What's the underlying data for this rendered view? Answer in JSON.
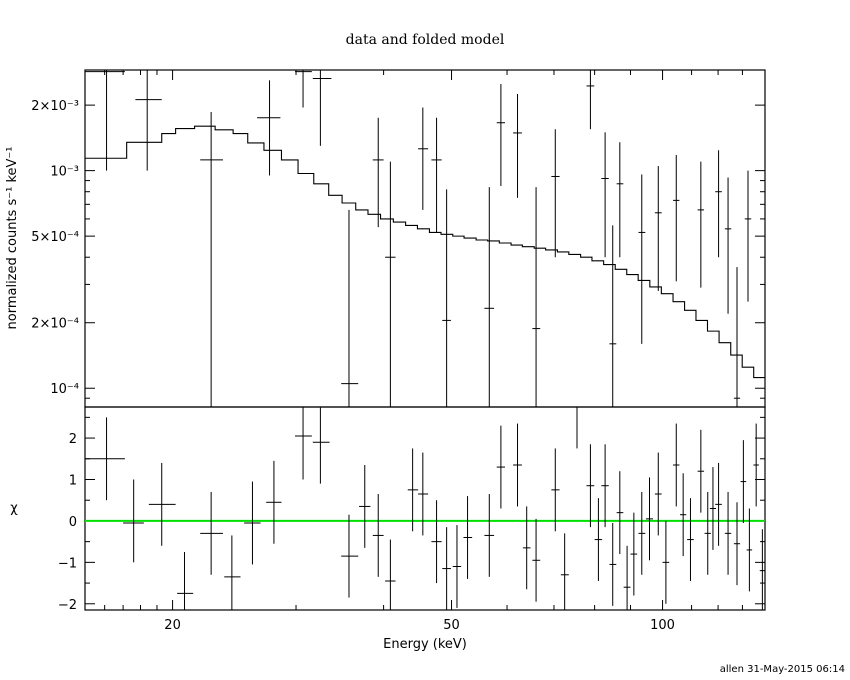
{
  "chart_data": [
    {
      "type": "scatter",
      "title": "data and folded model",
      "ylabel": "normalized counts s⁻¹ keV⁻¹",
      "yscale": "log",
      "xscale": "log",
      "xlim": [
        15,
        140
      ],
      "ylim": [
        8.2e-05,
        0.0029
      ],
      "ytick_labels": [
        "2×10⁻³",
        "10⁻³",
        "5×10⁻⁴",
        "2×10⁻⁴",
        "10⁻⁴"
      ],
      "ytick_values": [
        0.002,
        0.001,
        0.0005,
        0.0002,
        0.0001
      ],
      "data": [
        {
          "x": 16.1,
          "xlo": 15.0,
          "xhi": 17.1,
          "y": 0.00285,
          "ylo": 0.001,
          "yhi": 0.0045
        },
        {
          "x": 18.4,
          "xlo": 17.7,
          "xhi": 19.3,
          "y": 0.00212,
          "ylo": 0.001,
          "yhi": 0.0031
        },
        {
          "x": 22.7,
          "xlo": 21.9,
          "xhi": 23.6,
          "y": 0.00112,
          "ylo": 8e-05,
          "yhi": 0.00186
        },
        {
          "x": 27.5,
          "xlo": 26.4,
          "xhi": 28.5,
          "y": 0.00175,
          "ylo": 0.00095,
          "yhi": 0.0026
        },
        {
          "x": 30.7,
          "xlo": 29.9,
          "xhi": 31.6,
          "y": 0.00285,
          "ylo": 0.00195,
          "yhi": 0.0037
        },
        {
          "x": 32.5,
          "xlo": 31.7,
          "xhi": 33.7,
          "y": 0.00265,
          "ylo": 0.0013,
          "yhi": 0.004
        },
        {
          "x": 35.7,
          "xlo": 34.8,
          "xhi": 36.8,
          "y": 0.000105,
          "ylo": 8e-05,
          "yhi": 0.00066
        },
        {
          "x": 39.3,
          "xlo": 38.6,
          "xhi": 40.0,
          "y": 0.00112,
          "ylo": 0.00055,
          "yhi": 0.00175
        },
        {
          "x": 40.9,
          "xlo": 40.2,
          "xhi": 41.6,
          "y": 0.0004,
          "ylo": 8e-05,
          "yhi": 0.0011
        },
        {
          "x": 45.5,
          "xlo": 44.8,
          "xhi": 46.3,
          "y": 0.00126,
          "ylo": 0.00066,
          "yhi": 0.00195
        },
        {
          "x": 47.6,
          "xlo": 46.8,
          "xhi": 48.4,
          "y": 0.00112,
          "ylo": 0.00052,
          "yhi": 0.00175
        },
        {
          "x": 49.2,
          "xlo": 48.5,
          "xhi": 49.9,
          "y": 0.000205,
          "ylo": 8e-05,
          "yhi": 0.00082
        },
        {
          "x": 56.6,
          "xlo": 55.7,
          "xhi": 57.5,
          "y": 0.000233,
          "ylo": 8e-05,
          "yhi": 0.00084
        },
        {
          "x": 58.8,
          "xlo": 58.0,
          "xhi": 59.6,
          "y": 0.00166,
          "ylo": 0.00085,
          "yhi": 0.0025
        },
        {
          "x": 62.1,
          "xlo": 61.2,
          "xhi": 63.0,
          "y": 0.00149,
          "ylo": 0.00075,
          "yhi": 0.00225
        },
        {
          "x": 66.0,
          "xlo": 65.2,
          "xhi": 66.9,
          "y": 0.000188,
          "ylo": 8e-05,
          "yhi": 0.00084
        },
        {
          "x": 70.3,
          "xlo": 69.4,
          "xhi": 71.3,
          "y": 0.00094,
          "ylo": 0.0004,
          "yhi": 0.00155
        },
        {
          "x": 78.9,
          "xlo": 77.9,
          "xhi": 79.9,
          "y": 0.00245,
          "ylo": 0.00155,
          "yhi": 0.0033
        },
        {
          "x": 82.8,
          "xlo": 81.8,
          "xhi": 83.8,
          "y": 0.00092,
          "ylo": 0.0004,
          "yhi": 0.0015
        },
        {
          "x": 84.9,
          "xlo": 84.0,
          "xhi": 85.9,
          "y": 0.00016,
          "ylo": 8e-05,
          "yhi": 0.00056
        },
        {
          "x": 86.9,
          "xlo": 86.0,
          "xhi": 87.9,
          "y": 0.00087,
          "ylo": 0.0004,
          "yhi": 0.00135
        },
        {
          "x": 93.4,
          "xlo": 92.4,
          "xhi": 94.5,
          "y": 0.00052,
          "ylo": 0.00016,
          "yhi": 0.00096
        },
        {
          "x": 98.6,
          "xlo": 97.5,
          "xhi": 99.7,
          "y": 0.00064,
          "ylo": 0.00028,
          "yhi": 0.00105
        },
        {
          "x": 104.6,
          "xlo": 103.5,
          "xhi": 105.7,
          "y": 0.00073,
          "ylo": 0.00031,
          "yhi": 0.00118
        },
        {
          "x": 113.4,
          "xlo": 112.2,
          "xhi": 114.6,
          "y": 0.00066,
          "ylo": 0.00029,
          "yhi": 0.0011
        },
        {
          "x": 120.2,
          "xlo": 118.9,
          "xhi": 121.5,
          "y": 0.0008,
          "ylo": 0.0004,
          "yhi": 0.00124
        },
        {
          "x": 124.0,
          "xlo": 122.7,
          "xhi": 125.3,
          "y": 0.00054,
          "ylo": 0.00022,
          "yhi": 0.00093
        },
        {
          "x": 127.7,
          "xlo": 126.4,
          "xhi": 129.0,
          "y": 9e-05,
          "ylo": 8e-05,
          "yhi": 0.00036
        },
        {
          "x": 132.4,
          "xlo": 131.0,
          "xhi": 133.8,
          "y": 0.0006,
          "ylo": 0.00025,
          "yhi": 0.001
        }
      ],
      "model_steps": [
        [
          15.0,
          0.00114
        ],
        [
          17.2,
          0.00135
        ],
        [
          19.3,
          0.00148
        ],
        [
          20.2,
          0.00156
        ],
        [
          21.5,
          0.0016
        ],
        [
          23.0,
          0.00154
        ],
        [
          24.4,
          0.00148
        ],
        [
          25.6,
          0.00134
        ],
        [
          27.0,
          0.00124
        ],
        [
          28.6,
          0.00112
        ],
        [
          30.2,
          0.00097
        ],
        [
          31.8,
          0.00087
        ],
        [
          33.4,
          0.00077
        ],
        [
          34.9,
          0.00071
        ],
        [
          36.5,
          0.00066
        ],
        [
          38.0,
          0.00063
        ],
        [
          39.6,
          0.0006
        ],
        [
          41.3,
          0.00058
        ],
        [
          43.0,
          0.00056
        ],
        [
          44.7,
          0.00054
        ],
        [
          46.5,
          0.00052
        ],
        [
          48.3,
          0.00051
        ],
        [
          50.2,
          0.0005
        ],
        [
          52.1,
          0.00049
        ],
        [
          54.2,
          0.00048
        ],
        [
          56.3,
          0.000475
        ],
        [
          58.5,
          0.000465
        ],
        [
          60.8,
          0.000455
        ],
        [
          63.1,
          0.000447
        ],
        [
          65.6,
          0.00044
        ],
        [
          68.1,
          0.000432
        ],
        [
          70.8,
          0.000423
        ],
        [
          73.5,
          0.000412
        ],
        [
          76.4,
          0.0004
        ],
        [
          79.3,
          0.000385
        ],
        [
          82.4,
          0.00037
        ],
        [
          85.6,
          0.000352
        ],
        [
          88.9,
          0.000333
        ],
        [
          92.3,
          0.000313
        ],
        [
          95.9,
          0.000292
        ],
        [
          99.6,
          0.000272
        ],
        [
          103.5,
          0.00025
        ],
        [
          107.5,
          0.000228
        ],
        [
          111.6,
          0.000205
        ],
        [
          115.9,
          0.000183
        ],
        [
          120.4,
          0.000162
        ],
        [
          125.1,
          0.000142
        ],
        [
          129.9,
          0.000125
        ],
        [
          134.9,
          0.000112
        ],
        [
          140.0,
          0.000112
        ]
      ]
    },
    {
      "type": "scatter",
      "xlabel": "Energy (keV)",
      "ylabel": "χ",
      "xscale": "log",
      "xlim": [
        15,
        140
      ],
      "ylim": [
        -2.15,
        2.75
      ],
      "xtick_labels": [
        "20",
        "50",
        "100"
      ],
      "xtick_values": [
        20,
        50,
        100
      ],
      "ytick_labels": [
        "2",
        "1",
        "0",
        "−1",
        "−2"
      ],
      "ytick_values": [
        2,
        1,
        0,
        -1,
        -2
      ],
      "zero_line_color": "#00e000",
      "data": [
        {
          "x": 16.1,
          "xlo": 15.0,
          "xhi": 17.1,
          "y": 1.5,
          "ylo": 0.5,
          "yhi": 2.5
        },
        {
          "x": 17.6,
          "xlo": 17.0,
          "xhi": 18.2,
          "y": -0.05,
          "ylo": -1.0,
          "yhi": 1.0
        },
        {
          "x": 19.3,
          "xlo": 18.5,
          "xhi": 20.2,
          "y": 0.4,
          "ylo": -0.6,
          "yhi": 1.4
        },
        {
          "x": 20.8,
          "xlo": 20.3,
          "xhi": 21.4,
          "y": -1.75,
          "ylo": -2.15,
          "yhi": -0.75
        },
        {
          "x": 22.7,
          "xlo": 21.9,
          "xhi": 23.6,
          "y": -0.3,
          "ylo": -1.3,
          "yhi": 0.7
        },
        {
          "x": 24.3,
          "xlo": 23.7,
          "xhi": 25.0,
          "y": -1.35,
          "ylo": -2.15,
          "yhi": -0.35
        },
        {
          "x": 26.0,
          "xlo": 25.3,
          "xhi": 26.7,
          "y": -0.05,
          "ylo": -1.05,
          "yhi": 0.95
        },
        {
          "x": 27.9,
          "xlo": 27.2,
          "xhi": 28.6,
          "y": 0.45,
          "ylo": -0.55,
          "yhi": 1.45
        },
        {
          "x": 30.7,
          "xlo": 29.9,
          "xhi": 31.6,
          "y": 2.05,
          "ylo": 1.0,
          "yhi": 2.75
        },
        {
          "x": 32.5,
          "xlo": 31.7,
          "xhi": 33.5,
          "y": 1.9,
          "ylo": 0.9,
          "yhi": 2.75
        },
        {
          "x": 35.7,
          "xlo": 34.8,
          "xhi": 36.8,
          "y": -0.85,
          "ylo": -1.85,
          "yhi": 0.15
        },
        {
          "x": 37.6,
          "xlo": 36.9,
          "xhi": 38.3,
          "y": 0.35,
          "ylo": -0.65,
          "yhi": 1.35
        },
        {
          "x": 39.3,
          "xlo": 38.6,
          "xhi": 40.0,
          "y": -0.35,
          "ylo": -1.35,
          "yhi": 0.65
        },
        {
          "x": 40.9,
          "xlo": 40.2,
          "xhi": 41.6,
          "y": -1.45,
          "ylo": -2.15,
          "yhi": -0.45
        },
        {
          "x": 44.0,
          "xlo": 43.3,
          "xhi": 44.8,
          "y": 0.75,
          "ylo": -0.25,
          "yhi": 1.75
        },
        {
          "x": 45.5,
          "xlo": 44.8,
          "xhi": 46.3,
          "y": 0.65,
          "ylo": -0.35,
          "yhi": 1.65
        },
        {
          "x": 47.6,
          "xlo": 46.8,
          "xhi": 48.4,
          "y": -0.5,
          "ylo": -1.5,
          "yhi": 0.5
        },
        {
          "x": 49.2,
          "xlo": 48.5,
          "xhi": 49.9,
          "y": -1.15,
          "ylo": -2.15,
          "yhi": -0.15
        },
        {
          "x": 50.9,
          "xlo": 50.2,
          "xhi": 51.6,
          "y": -1.1,
          "ylo": -2.1,
          "yhi": -0.1
        },
        {
          "x": 52.7,
          "xlo": 52.0,
          "xhi": 53.5,
          "y": -0.4,
          "ylo": -1.4,
          "yhi": 0.6
        },
        {
          "x": 56.6,
          "xlo": 55.7,
          "xhi": 57.5,
          "y": -0.35,
          "ylo": -1.35,
          "yhi": 0.65
        },
        {
          "x": 58.8,
          "xlo": 58.0,
          "xhi": 59.6,
          "y": 1.3,
          "ylo": 0.3,
          "yhi": 2.3
        },
        {
          "x": 62.1,
          "xlo": 61.2,
          "xhi": 63.0,
          "y": 1.35,
          "ylo": 0.35,
          "yhi": 2.35
        },
        {
          "x": 64.0,
          "xlo": 63.2,
          "xhi": 64.8,
          "y": -0.65,
          "ylo": -1.65,
          "yhi": 0.35
        },
        {
          "x": 66.0,
          "xlo": 65.2,
          "xhi": 66.9,
          "y": -0.95,
          "ylo": -1.95,
          "yhi": 0.05
        },
        {
          "x": 70.3,
          "xlo": 69.4,
          "xhi": 71.3,
          "y": 0.75,
          "ylo": -0.25,
          "yhi": 1.75
        },
        {
          "x": 72.5,
          "xlo": 71.6,
          "xhi": 73.5,
          "y": -1.3,
          "ylo": -2.15,
          "yhi": -0.3
        },
        {
          "x": 75.5,
          "xlo": 74.7,
          "xhi": 76.4,
          "y": 2.75,
          "ylo": 1.75,
          "yhi": 2.75
        },
        {
          "x": 78.9,
          "xlo": 77.9,
          "xhi": 79.9,
          "y": 0.85,
          "ylo": -0.15,
          "yhi": 1.85
        },
        {
          "x": 81.0,
          "xlo": 80.0,
          "xhi": 82.0,
          "y": -0.45,
          "ylo": -1.45,
          "yhi": 0.55
        },
        {
          "x": 82.8,
          "xlo": 81.8,
          "xhi": 83.8,
          "y": 0.85,
          "ylo": -0.15,
          "yhi": 1.85
        },
        {
          "x": 84.9,
          "xlo": 84.0,
          "xhi": 85.9,
          "y": -1.05,
          "ylo": -2.05,
          "yhi": -0.05
        },
        {
          "x": 86.9,
          "xlo": 86.0,
          "xhi": 87.9,
          "y": 0.2,
          "ylo": -0.8,
          "yhi": 1.2
        },
        {
          "x": 89.0,
          "xlo": 88.0,
          "xhi": 90.0,
          "y": -1.6,
          "ylo": -2.15,
          "yhi": -0.6
        },
        {
          "x": 91.0,
          "xlo": 90.0,
          "xhi": 92.0,
          "y": -0.8,
          "ylo": -1.8,
          "yhi": 0.2
        },
        {
          "x": 93.4,
          "xlo": 92.4,
          "xhi": 94.5,
          "y": -0.3,
          "ylo": -1.3,
          "yhi": 0.7
        },
        {
          "x": 95.8,
          "xlo": 94.7,
          "xhi": 96.9,
          "y": 0.05,
          "ylo": -0.95,
          "yhi": 1.05
        },
        {
          "x": 98.6,
          "xlo": 97.5,
          "xhi": 99.7,
          "y": 0.65,
          "ylo": -0.35,
          "yhi": 1.65
        },
        {
          "x": 101.1,
          "xlo": 100.0,
          "xhi": 102.2,
          "y": -1.0,
          "ylo": -2.0,
          "yhi": 0.0
        },
        {
          "x": 104.6,
          "xlo": 103.5,
          "xhi": 105.7,
          "y": 1.35,
          "ylo": 0.35,
          "yhi": 2.35
        },
        {
          "x": 107.0,
          "xlo": 105.9,
          "xhi": 108.1,
          "y": 0.15,
          "ylo": -0.85,
          "yhi": 1.15
        },
        {
          "x": 109.6,
          "xlo": 108.4,
          "xhi": 110.8,
          "y": -0.45,
          "ylo": -1.45,
          "yhi": 0.55
        },
        {
          "x": 113.4,
          "xlo": 112.2,
          "xhi": 114.6,
          "y": 1.2,
          "ylo": 0.2,
          "yhi": 2.2
        },
        {
          "x": 116.0,
          "xlo": 114.8,
          "xhi": 117.2,
          "y": -0.3,
          "ylo": -1.3,
          "yhi": 0.7
        },
        {
          "x": 118.0,
          "xlo": 116.8,
          "xhi": 119.2,
          "y": 0.3,
          "ylo": -0.7,
          "yhi": 1.3
        },
        {
          "x": 120.2,
          "xlo": 118.9,
          "xhi": 121.5,
          "y": 0.4,
          "ylo": -0.6,
          "yhi": 1.4
        },
        {
          "x": 124.0,
          "xlo": 122.7,
          "xhi": 125.3,
          "y": -0.3,
          "ylo": -1.3,
          "yhi": 0.7
        },
        {
          "x": 127.7,
          "xlo": 126.4,
          "xhi": 129.0,
          "y": -0.55,
          "ylo": -1.55,
          "yhi": 0.45
        },
        {
          "x": 130.4,
          "xlo": 129.2,
          "xhi": 131.6,
          "y": 0.95,
          "ylo": -0.05,
          "yhi": 1.95
        },
        {
          "x": 133.0,
          "xlo": 131.8,
          "xhi": 134.2,
          "y": -0.7,
          "ylo": -1.7,
          "yhi": 0.3
        },
        {
          "x": 136.0,
          "xlo": 134.8,
          "xhi": 137.2,
          "y": 1.35,
          "ylo": 0.35,
          "yhi": 2.35
        },
        {
          "x": 138.8,
          "xlo": 137.6,
          "xhi": 140.0,
          "y": -1.2,
          "ylo": -2.15,
          "yhi": -0.2
        }
      ]
    }
  ],
  "footer": "allen  31-May-2015 06:14"
}
